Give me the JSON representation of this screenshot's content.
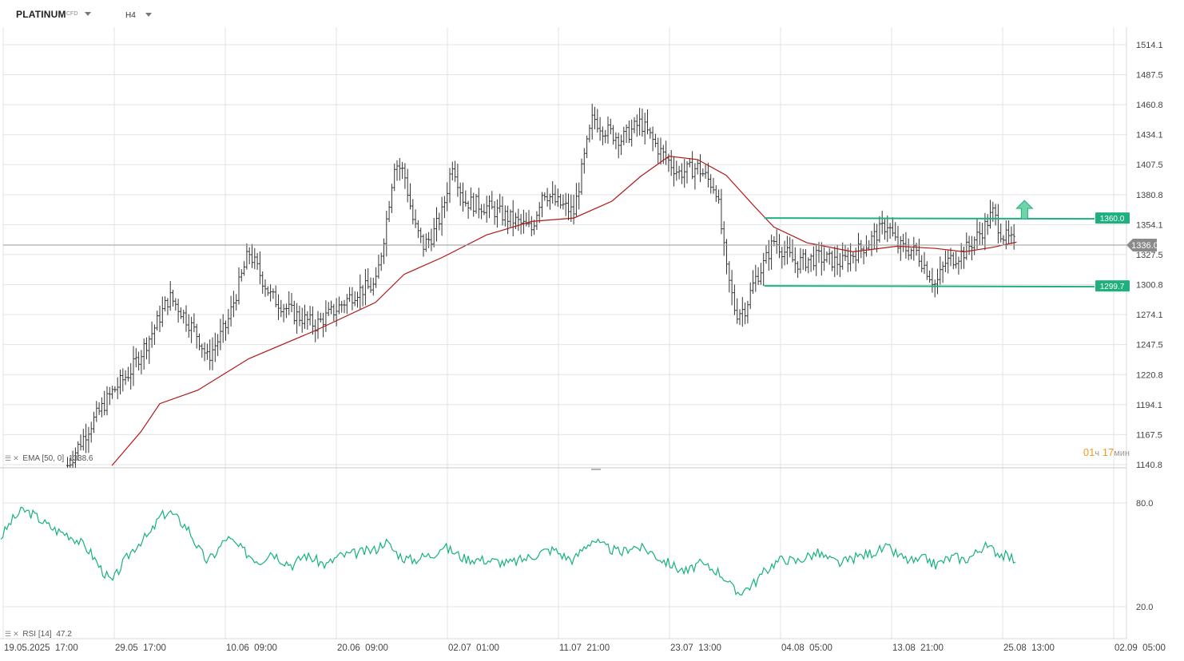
{
  "header": {
    "symbol": "PLATINUM",
    "symbol_type": "CFD",
    "timeframe": "H4"
  },
  "indicators": {
    "ema": {
      "name": "EMA",
      "params": "[50, 0]",
      "value": "1338.6"
    },
    "rsi": {
      "name": "RSI",
      "params": "[14]",
      "value": "47.2"
    }
  },
  "timer": {
    "hours": "01",
    "hours_unit": "ч",
    "minutes": "17",
    "minutes_unit": "мин"
  },
  "colors": {
    "price_bar": "#333333",
    "ema": "#b01818",
    "rsi": "#16b27a",
    "channel": "#1fb07d",
    "arrow": "#6fd4a8",
    "current_price_tag": "#8a8a8a",
    "grid": "#e3e3e3"
  },
  "chart_data": [
    {
      "type": "ohlc",
      "title": "",
      "instrument": "PLATINUM",
      "timeframe": "H4",
      "x_ticks": [
        "19.05.2025  17:00",
        "29.05  17:00",
        "10.06  09:00",
        "20.06  09:00",
        "02.07  01:00",
        "11.07  21:00",
        "23.07  13:00",
        "04.08  05:00",
        "13.08  21:00",
        "25.08  13:00",
        "02.09  05:00"
      ],
      "y_ticks": [
        "1514.1",
        "1487.5",
        "1460.8",
        "1434.1",
        "1407.5",
        "1380.8",
        "1354.1",
        "1327.5",
        "1300.8",
        "1274.1",
        "1247.5",
        "1220.8",
        "1194.1",
        "1167.5",
        "1140.8"
      ],
      "ylim": [
        1140.8,
        1514.1
      ],
      "current_price": "1336.0",
      "grid": true,
      "annotations": [
        {
          "type": "horizontal-level",
          "label": "1360.0",
          "value": 1360.0
        },
        {
          "type": "horizontal-level",
          "label": "1299.7",
          "value": 1299.7
        },
        {
          "type": "arrow-up",
          "near": "25.08  13:00",
          "value": 1365
        }
      ],
      "price_path": [
        {
          "x": "25.05",
          "y": 1140
        },
        {
          "x": "27.05",
          "y": 1175
        },
        {
          "x": "29.05",
          "y": 1205
        },
        {
          "x": "31.05",
          "y": 1225
        },
        {
          "x": "02.06",
          "y": 1255
        },
        {
          "x": "04.06",
          "y": 1290
        },
        {
          "x": "05.06",
          "y": 1280
        },
        {
          "x": "07.06",
          "y": 1255
        },
        {
          "x": "08.06",
          "y": 1235
        },
        {
          "x": "10.06",
          "y": 1265
        },
        {
          "x": "12.06",
          "y": 1330
        },
        {
          "x": "14.06",
          "y": 1290
        },
        {
          "x": "16.06",
          "y": 1275
        },
        {
          "x": "18.06",
          "y": 1265
        },
        {
          "x": "20.06",
          "y": 1280
        },
        {
          "x": "22.06",
          "y": 1295
        },
        {
          "x": "24.06",
          "y": 1300
        },
        {
          "x": "25.06",
          "y": 1350
        },
        {
          "x": "26.06",
          "y": 1410
        },
        {
          "x": "27.06",
          "y": 1400
        },
        {
          "x": "28.06",
          "y": 1355
        },
        {
          "x": "29.06",
          "y": 1335
        },
        {
          "x": "30.06",
          "y": 1345
        },
        {
          "x": "01.07",
          "y": 1365
        },
        {
          "x": "02.07",
          "y": 1410
        },
        {
          "x": "03.07",
          "y": 1375
        },
        {
          "x": "05.07",
          "y": 1370
        },
        {
          "x": "07.07",
          "y": 1360
        },
        {
          "x": "09.07",
          "y": 1350
        },
        {
          "x": "10.07",
          "y": 1385
        },
        {
          "x": "11.07",
          "y": 1375
        },
        {
          "x": "13.07",
          "y": 1365
        },
        {
          "x": "14.07",
          "y": 1410
        },
        {
          "x": "15.07",
          "y": 1450
        },
        {
          "x": "16.07",
          "y": 1440
        },
        {
          "x": "18.07",
          "y": 1430
        },
        {
          "x": "20.07",
          "y": 1445
        },
        {
          "x": "22.07",
          "y": 1420
        },
        {
          "x": "24.07",
          "y": 1400
        },
        {
          "x": "26.07",
          "y": 1405
        },
        {
          "x": "28.07",
          "y": 1385
        },
        {
          "x": "29.07",
          "y": 1315
        },
        {
          "x": "30.07",
          "y": 1275
        },
        {
          "x": "31.07",
          "y": 1280
        },
        {
          "x": "01.08",
          "y": 1305
        },
        {
          "x": "02.08",
          "y": 1320
        },
        {
          "x": "03.08",
          "y": 1340
        },
        {
          "x": "05.08",
          "y": 1320
        },
        {
          "x": "07.08",
          "y": 1325
        },
        {
          "x": "09.08",
          "y": 1320
        },
        {
          "x": "11.08",
          "y": 1335
        },
        {
          "x": "13.08",
          "y": 1355
        },
        {
          "x": "14.08",
          "y": 1335
        },
        {
          "x": "16.08",
          "y": 1330
        },
        {
          "x": "18.08",
          "y": 1300
        },
        {
          "x": "19.08",
          "y": 1320
        },
        {
          "x": "21.08",
          "y": 1330
        },
        {
          "x": "23.08",
          "y": 1350
        },
        {
          "x": "24.08",
          "y": 1365
        },
        {
          "x": "25.08",
          "y": 1345
        },
        {
          "x": "26.08",
          "y": 1336
        }
      ],
      "ema_path": [
        {
          "x": "29.05",
          "y": 1140
        },
        {
          "x": "01.06",
          "y": 1170
        },
        {
          "x": "03.06",
          "y": 1195
        },
        {
          "x": "07.06",
          "y": 1207
        },
        {
          "x": "12.06",
          "y": 1235
        },
        {
          "x": "18.06",
          "y": 1260
        },
        {
          "x": "24.06",
          "y": 1285
        },
        {
          "x": "27.06",
          "y": 1310
        },
        {
          "x": "01.07",
          "y": 1325
        },
        {
          "x": "05.07",
          "y": 1345
        },
        {
          "x": "09.07",
          "y": 1357
        },
        {
          "x": "13.07",
          "y": 1360
        },
        {
          "x": "17.07",
          "y": 1375
        },
        {
          "x": "20.07",
          "y": 1397
        },
        {
          "x": "23.07",
          "y": 1415
        },
        {
          "x": "26.07",
          "y": 1412
        },
        {
          "x": "29.07",
          "y": 1398
        },
        {
          "x": "01.08",
          "y": 1370
        },
        {
          "x": "03.08",
          "y": 1352
        },
        {
          "x": "06.08",
          "y": 1338
        },
        {
          "x": "10.08",
          "y": 1330
        },
        {
          "x": "14.08",
          "y": 1335
        },
        {
          "x": "18.08",
          "y": 1333
        },
        {
          "x": "21.08",
          "y": 1330
        },
        {
          "x": "24.08",
          "y": 1334
        },
        {
          "x": "26.08",
          "y": 1338.6
        }
      ]
    },
    {
      "type": "line",
      "title": "",
      "indicator": "RSI",
      "params": "[14]",
      "current": "47.2",
      "y_ticks": [
        "80.0",
        "20.0"
      ],
      "ylim": [
        15,
        85
      ],
      "grid": true,
      "values_path": [
        {
          "x": "19.05",
          "y": 60
        },
        {
          "x": "20.05",
          "y": 70
        },
        {
          "x": "21.05",
          "y": 76
        },
        {
          "x": "22.05",
          "y": 73
        },
        {
          "x": "23.05",
          "y": 68
        },
        {
          "x": "24.05",
          "y": 64
        },
        {
          "x": "25.05",
          "y": 62
        },
        {
          "x": "26.05",
          "y": 58
        },
        {
          "x": "27.05",
          "y": 52
        },
        {
          "x": "28.05",
          "y": 42
        },
        {
          "x": "29.05",
          "y": 34
        },
        {
          "x": "30.05",
          "y": 44
        },
        {
          "x": "31.05",
          "y": 52
        },
        {
          "x": "01.06",
          "y": 58
        },
        {
          "x": "02.06",
          "y": 62
        },
        {
          "x": "03.06",
          "y": 72
        },
        {
          "x": "04.06",
          "y": 75
        },
        {
          "x": "05.06",
          "y": 70
        },
        {
          "x": "06.06",
          "y": 65
        },
        {
          "x": "07.06",
          "y": 54
        },
        {
          "x": "08.06",
          "y": 46
        },
        {
          "x": "09.06",
          "y": 52
        },
        {
          "x": "10.06",
          "y": 60
        },
        {
          "x": "11.06",
          "y": 55
        },
        {
          "x": "12.06",
          "y": 50
        },
        {
          "x": "13.06",
          "y": 46
        },
        {
          "x": "14.06",
          "y": 52
        },
        {
          "x": "15.06",
          "y": 47
        },
        {
          "x": "16.06",
          "y": 44
        },
        {
          "x": "17.06",
          "y": 50
        },
        {
          "x": "18.06",
          "y": 47
        },
        {
          "x": "19.06",
          "y": 44
        },
        {
          "x": "20.06",
          "y": 49
        },
        {
          "x": "22.06",
          "y": 51
        },
        {
          "x": "24.06",
          "y": 53
        },
        {
          "x": "25.06",
          "y": 58
        },
        {
          "x": "26.06",
          "y": 52
        },
        {
          "x": "27.06",
          "y": 48
        },
        {
          "x": "28.06",
          "y": 47
        },
        {
          "x": "29.06",
          "y": 49
        },
        {
          "x": "30.06",
          "y": 50
        },
        {
          "x": "01.07",
          "y": 55
        },
        {
          "x": "02.07",
          "y": 52
        },
        {
          "x": "03.07",
          "y": 48
        },
        {
          "x": "05.07",
          "y": 47
        },
        {
          "x": "07.07",
          "y": 45
        },
        {
          "x": "08.07",
          "y": 47
        },
        {
          "x": "09.07",
          "y": 49
        },
        {
          "x": "10.07",
          "y": 52
        },
        {
          "x": "11.07",
          "y": 53
        },
        {
          "x": "12.07",
          "y": 49
        },
        {
          "x": "13.07",
          "y": 47
        },
        {
          "x": "14.07",
          "y": 54
        },
        {
          "x": "15.07",
          "y": 59
        },
        {
          "x": "16.07",
          "y": 55
        },
        {
          "x": "17.07",
          "y": 53
        },
        {
          "x": "18.07",
          "y": 51
        },
        {
          "x": "19.07",
          "y": 55
        },
        {
          "x": "20.07",
          "y": 54
        },
        {
          "x": "21.07",
          "y": 52
        },
        {
          "x": "22.07",
          "y": 48
        },
        {
          "x": "23.07",
          "y": 45
        },
        {
          "x": "24.07",
          "y": 42
        },
        {
          "x": "25.07",
          "y": 40
        },
        {
          "x": "26.07",
          "y": 45
        },
        {
          "x": "27.07",
          "y": 43
        },
        {
          "x": "28.07",
          "y": 41
        },
        {
          "x": "29.07",
          "y": 36
        },
        {
          "x": "30.07",
          "y": 28
        },
        {
          "x": "31.07",
          "y": 30
        },
        {
          "x": "01.08",
          "y": 34
        },
        {
          "x": "02.08",
          "y": 40
        },
        {
          "x": "03.08",
          "y": 45
        },
        {
          "x": "04.08",
          "y": 48
        },
        {
          "x": "05.08",
          "y": 46
        },
        {
          "x": "06.08",
          "y": 49
        },
        {
          "x": "07.08",
          "y": 51
        },
        {
          "x": "08.08",
          "y": 47
        },
        {
          "x": "09.08",
          "y": 45
        },
        {
          "x": "10.08",
          "y": 48
        },
        {
          "x": "11.08",
          "y": 50
        },
        {
          "x": "12.08",
          "y": 52
        },
        {
          "x": "13.08",
          "y": 54
        },
        {
          "x": "14.08",
          "y": 50
        },
        {
          "x": "15.08",
          "y": 47
        },
        {
          "x": "16.08",
          "y": 46
        },
        {
          "x": "17.08",
          "y": 48
        },
        {
          "x": "18.08",
          "y": 44
        },
        {
          "x": "19.08",
          "y": 47
        },
        {
          "x": "20.08",
          "y": 49
        },
        {
          "x": "21.08",
          "y": 47
        },
        {
          "x": "22.08",
          "y": 50
        },
        {
          "x": "23.08",
          "y": 55
        },
        {
          "x": "24.08",
          "y": 53
        },
        {
          "x": "25.08",
          "y": 50
        },
        {
          "x": "26.08",
          "y": 47.2
        }
      ]
    }
  ]
}
